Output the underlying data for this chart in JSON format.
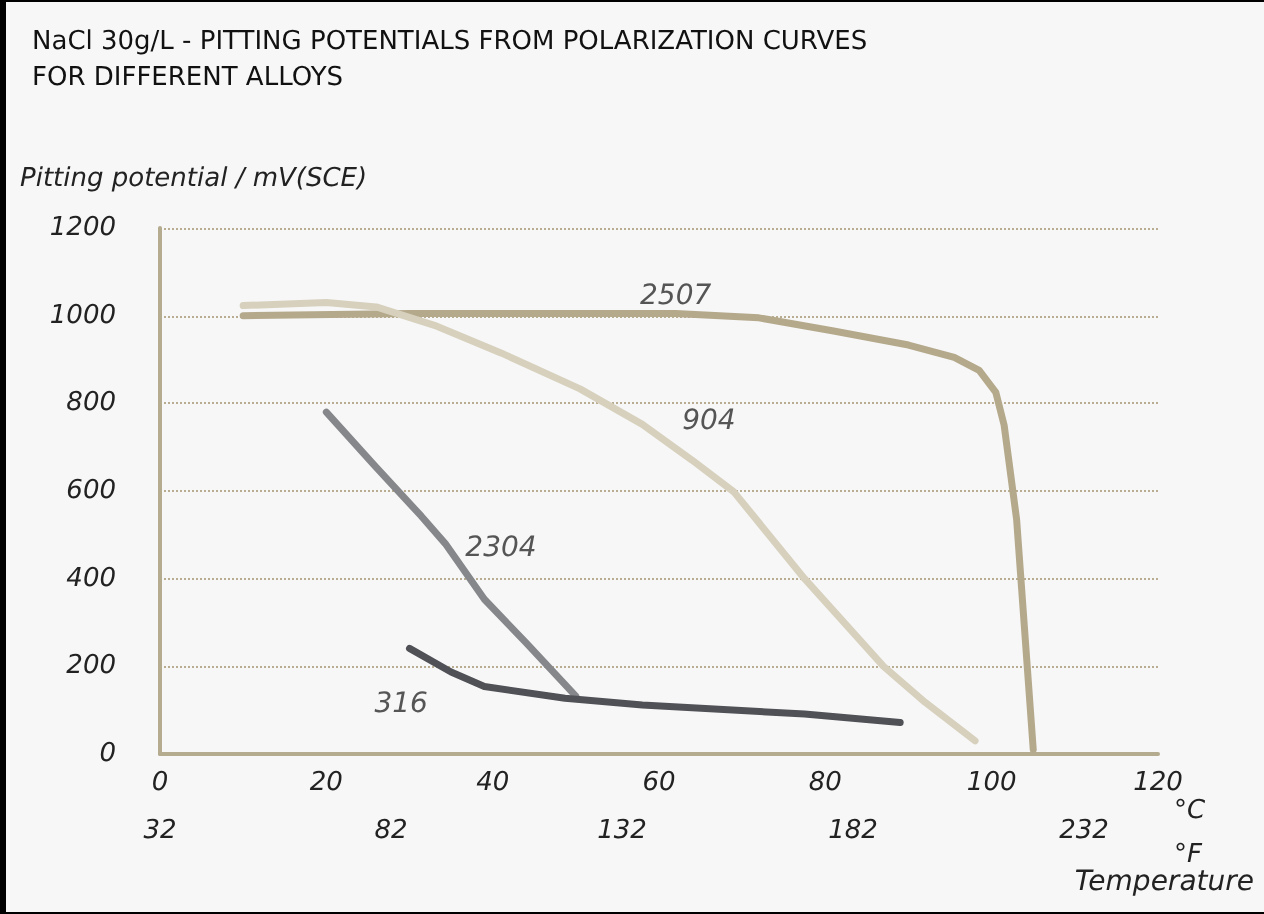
{
  "chart_data": {
    "type": "line",
    "title": "NaCl 30g/L - PITTING POTENTIALS FROM POLARIZATION CURVES\nFOR DIFFERENT ALLOYS",
    "ylabel": "Pitting potential / mV(SCE)",
    "xlabel": "°C",
    "x2label": "°F",
    "annotations": [
      "Temperature"
    ],
    "xlim": [
      0,
      120
    ],
    "xticks": [
      0,
      20,
      40,
      60,
      80,
      100,
      120
    ],
    "x2lim": [
      32,
      248
    ],
    "x2ticks": [
      32,
      82,
      132,
      182,
      232
    ],
    "ylim": [
      0,
      1200
    ],
    "yticks": [
      0,
      200,
      400,
      600,
      800,
      1000,
      1200
    ],
    "grid": "y",
    "legend": false,
    "marker": "none",
    "line_style": "solid",
    "series": [
      {
        "name": "2507",
        "color": "#b5a98c",
        "x": [
          10,
          30,
          50,
          62,
          72,
          81,
          90,
          95.5,
          98.5,
          100.5,
          101.5,
          103,
          105
        ],
        "values": [
          1000,
          1005,
          1005,
          1005,
          995,
          965,
          933,
          905,
          875,
          825,
          750,
          535,
          10
        ]
      },
      {
        "name": "904",
        "color": "#d6d0bd",
        "x": [
          10,
          20,
          26,
          33,
          41,
          50.5,
          58,
          64,
          69,
          77.5,
          87,
          92,
          98
        ],
        "values": [
          1023,
          1030,
          1020,
          978,
          915,
          833,
          752,
          670,
          598,
          400,
          200,
          118,
          30
        ]
      },
      {
        "name": "2304",
        "color": "#86878b",
        "x": [
          20,
          25.7,
          31.4,
          34.3,
          39,
          44,
          50
        ],
        "values": [
          780,
          660,
          543,
          480,
          353,
          254,
          132
        ]
      },
      {
        "name": "316",
        "color": "#505156",
        "x": [
          30,
          35,
          39,
          48.7,
          58,
          77.5,
          89
        ],
        "values": [
          241,
          187,
          154,
          127,
          112,
          91,
          72
        ]
      }
    ]
  }
}
